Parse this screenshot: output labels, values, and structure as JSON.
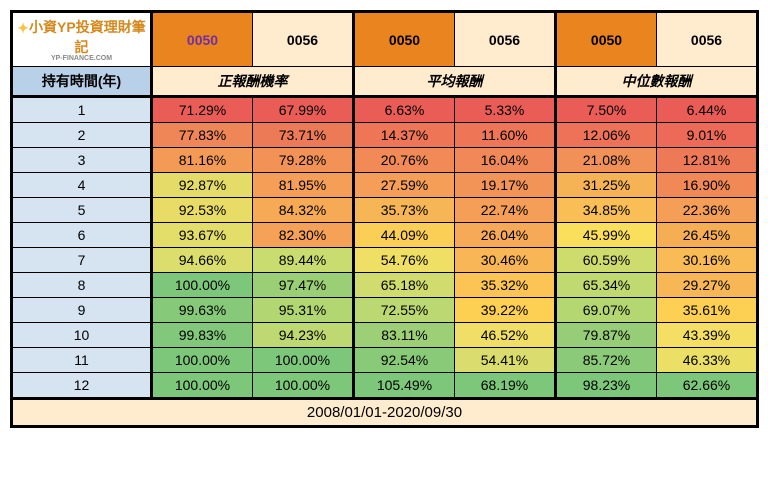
{
  "logo": {
    "title": "小資YP投資理財筆記",
    "sub": "YP-FINANCE.COM"
  },
  "header": {
    "tickers": [
      "0050",
      "0056",
      "0050",
      "0056",
      "0050",
      "0056"
    ],
    "ticker_bg": [
      "#e9841f",
      "#ffebcd",
      "#e9841f",
      "#ffebcd",
      "#e9841f",
      "#ffebcd"
    ],
    "ticker_fg": [
      "#7030a0",
      "#000",
      "#000",
      "#000",
      "#000",
      "#000"
    ],
    "holding_label": "持有時間(年)",
    "groups": [
      "正報酬機率",
      "平均報酬",
      "中位數報酬"
    ]
  },
  "years": [
    "1",
    "2",
    "3",
    "4",
    "5",
    "6",
    "7",
    "8",
    "9",
    "10",
    "11",
    "12"
  ],
  "year_bg": "#d6e4f2",
  "hdr_holding_bg": "#b8d0e8",
  "blocks": [
    {
      "label": "正報酬機率",
      "cols": [
        {
          "vals": [
            "71.29%",
            "77.83%",
            "81.16%",
            "92.87%",
            "92.53%",
            "93.67%",
            "94.66%",
            "100.00%",
            "99.63%",
            "99.83%",
            "100.00%",
            "100.00%"
          ],
          "bg": [
            "#ea5d57",
            "#ef8658",
            "#f49a57",
            "#e5db68",
            "#e8dc67",
            "#e3dd69",
            "#dbde6c",
            "#7dc77b",
            "#86c979",
            "#82c87a",
            "#7dc77b",
            "#7dc77b"
          ]
        },
        {
          "vals": [
            "67.99%",
            "73.71%",
            "79.28%",
            "81.95%",
            "84.32%",
            "82.30%",
            "89.44%",
            "97.47%",
            "95.31%",
            "94.23%",
            "100.00%",
            "100.00%"
          ],
          "bg": [
            "#ea5d57",
            "#ed7a57",
            "#f29257",
            "#f49e57",
            "#f6aa56",
            "#f5a157",
            "#c9dc6f",
            "#9bcf75",
            "#b2d672",
            "#bed972",
            "#7dc77b",
            "#7dc77b"
          ]
        }
      ]
    },
    {
      "label": "平均報酬",
      "cols": [
        {
          "vals": [
            "6.63%",
            "14.37%",
            "20.76%",
            "27.59%",
            "35.73%",
            "44.09%",
            "54.76%",
            "65.18%",
            "72.55%",
            "83.11%",
            "92.54%",
            "105.49%"
          ],
          "bg": [
            "#ea5d57",
            "#ee7657",
            "#f18a57",
            "#f49e57",
            "#f7b656",
            "#fbcf55",
            "#efe065",
            "#d0dd6e",
            "#bbd872",
            "#9dd076",
            "#89ca78",
            "#7dc77b"
          ]
        },
        {
          "vals": [
            "5.33%",
            "11.60%",
            "16.04%",
            "19.17%",
            "22.74%",
            "26.04%",
            "30.46%",
            "35.32%",
            "39.22%",
            "46.52%",
            "54.41%",
            "68.19%"
          ],
          "bg": [
            "#ea5d57",
            "#ee7657",
            "#f18857",
            "#f29357",
            "#f49e57",
            "#f6a957",
            "#f8b656",
            "#fbc455",
            "#fdd054",
            "#f1de66",
            "#dadd6d",
            "#7dc77b"
          ]
        }
      ]
    },
    {
      "label": "中位數報酬",
      "cols": [
        {
          "vals": [
            "7.50%",
            "12.06%",
            "21.08%",
            "31.25%",
            "34.85%",
            "45.99%",
            "60.59%",
            "65.34%",
            "69.07%",
            "79.87%",
            "85.72%",
            "98.23%"
          ],
          "bg": [
            "#ea5d57",
            "#ed7257",
            "#f19157",
            "#f6b356",
            "#f9be55",
            "#f9df5c",
            "#cedc6e",
            "#c0da71",
            "#b4d772",
            "#97cd76",
            "#8bca78",
            "#7dc77b"
          ]
        },
        {
          "vals": [
            "6.44%",
            "9.01%",
            "12.81%",
            "16.90%",
            "22.36%",
            "26.45%",
            "30.16%",
            "29.27%",
            "35.61%",
            "43.39%",
            "46.33%",
            "62.66%"
          ],
          "bg": [
            "#ea5d57",
            "#ec6a57",
            "#ee7957",
            "#f18957",
            "#f49e57",
            "#f6ae55",
            "#f8bb55",
            "#f8b756",
            "#fdd054",
            "#f4de64",
            "#ecdf65",
            "#7dc77b"
          ]
        }
      ]
    }
  ],
  "footer": "2008/01/01-2020/09/30"
}
